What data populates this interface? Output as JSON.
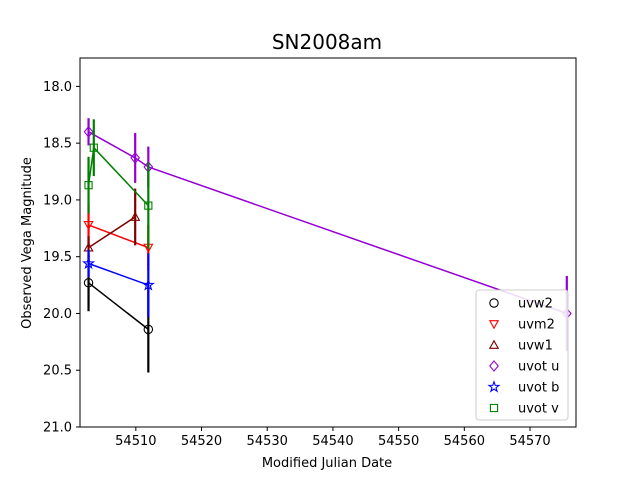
{
  "chart_data": {
    "type": "scatter",
    "title": "SN2008am",
    "xlabel": "Modified Julian Date",
    "ylabel": "Observed Vega Magnitude",
    "xlim": [
      54501.5,
      54577
    ],
    "ylim": [
      21.0,
      17.75
    ],
    "y_inverted": true,
    "xticks": [
      54510,
      54520,
      54530,
      54540,
      54550,
      54560,
      54570
    ],
    "yticks": [
      18.0,
      18.5,
      19.0,
      19.5,
      20.0,
      20.5,
      21.0
    ],
    "grid": false,
    "legend_position": "lower-right",
    "series": [
      {
        "name": "uvw2",
        "marker": "circle",
        "color": "#000000",
        "x": [
          54502.8,
          54511.9
        ],
        "y": [
          19.73,
          20.14
        ],
        "yerr": [
          0.25,
          0.38
        ]
      },
      {
        "name": "uvm2",
        "marker": "triangle-down",
        "color": "#ff0000",
        "x": [
          54502.8,
          54511.9
        ],
        "y": [
          19.22,
          19.42
        ],
        "yerr": [
          0.18,
          0.2
        ]
      },
      {
        "name": "uvw1",
        "marker": "triangle-up",
        "color": "#800000",
        "x": [
          54502.8,
          54509.9
        ],
        "y": [
          19.42,
          19.15
        ],
        "yerr": [
          0.1,
          0.25
        ]
      },
      {
        "name": "uvot u",
        "marker": "diamond",
        "color": "#9400d3",
        "x": [
          54502.8,
          54509.9,
          54511.9,
          54575.6
        ],
        "y": [
          18.4,
          18.63,
          18.71,
          20.0
        ],
        "yerr": [
          0.12,
          0.22,
          0.18,
          0.33
        ]
      },
      {
        "name": "uvot b",
        "marker": "star",
        "color": "#0000ff",
        "x": [
          54502.8,
          54511.9
        ],
        "y": [
          19.56,
          19.75
        ],
        "yerr": [
          0.12,
          0.28
        ]
      },
      {
        "name": "uvot v",
        "marker": "square",
        "color": "#008000",
        "x": [
          54502.8,
          54503.6,
          54511.9
        ],
        "y": [
          18.87,
          18.54,
          19.05
        ],
        "yerr": [
          0.25,
          0.25,
          0.38
        ]
      }
    ]
  }
}
